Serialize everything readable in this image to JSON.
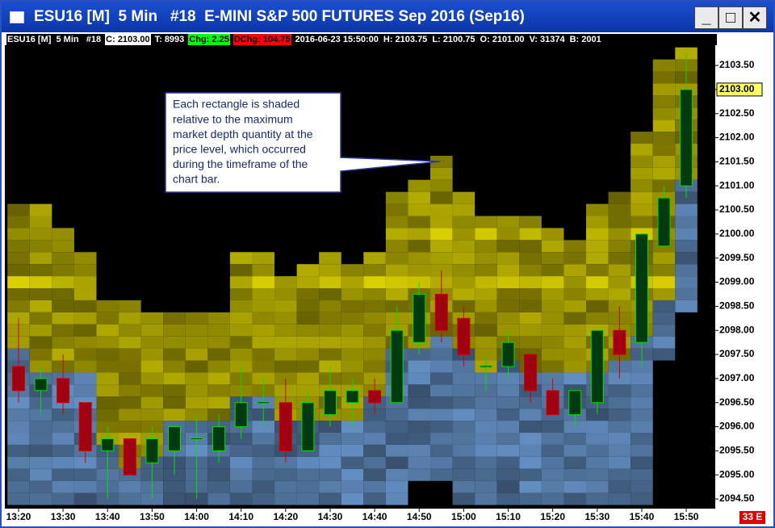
{
  "window_title": "ESU16 [M]  5 Min   #18  E-MINI S&P 500 FUTURES Sep 2016 (Sep16)",
  "info_bar": [
    {
      "text": "ESU16 [M]  5 Min   #18"
    },
    {
      "text": "C: 2103.00",
      "bg": "#ffffff",
      "fg": "#000000"
    },
    {
      "text": "T: 8993"
    },
    {
      "text": "Chg: 2.25",
      "bg": "#00ff00",
      "fg": "#000000"
    },
    {
      "text": "DChg: 104.75",
      "bg": "#ff0000",
      "fg": "#000000"
    },
    {
      "text": "2016-06-23 15:50:00"
    },
    {
      "text": "H: 2103.75"
    },
    {
      "text": "L: 2100.75"
    },
    {
      "text": "O: 2101.00"
    },
    {
      "text": "V: 31374"
    },
    {
      "text": "B: 2001"
    }
  ],
  "status": "33 E",
  "chart_data": {
    "type": "candlestick",
    "annotation": [
      "Each rectangle is shaded",
      "relative to the maximum",
      "market depth quantity at the",
      "price level, which occurred",
      "during the timeframe of the",
      "chart bar."
    ],
    "categories": [
      "13:20",
      null,
      "13:30",
      null,
      "13:40",
      null,
      "13:50",
      null,
      "14:00",
      null,
      "14:10",
      null,
      "14:20",
      null,
      "14:30",
      null,
      "14:40",
      null,
      "14:50",
      null,
      "15:00",
      null,
      "15:10",
      null,
      "15:20",
      null,
      "15:30",
      null,
      "15:40",
      null,
      "15:50"
    ],
    "open": [
      2097.25,
      2096.75,
      2097.0,
      2096.5,
      2095.5,
      2095.75,
      2095.25,
      2095.5,
      2095.75,
      2095.5,
      2096.0,
      2096.5,
      2096.5,
      2095.5,
      2096.25,
      2096.5,
      2096.75,
      2096.5,
      2097.75,
      2098.75,
      2098.25,
      2097.25,
      2097.25,
      2097.5,
      2096.75,
      2096.25,
      2096.5,
      2098.0,
      2097.75,
      2099.75,
      2101.0
    ],
    "high": [
      2098.25,
      2097.25,
      2097.5,
      2096.5,
      2096.0,
      2095.75,
      2096.0,
      2096.0,
      2096.25,
      2096.25,
      2097.25,
      2097.0,
      2097.0,
      2096.75,
      2097.25,
      2097.0,
      2097.0,
      2098.5,
      2099.0,
      2099.25,
      2098.5,
      2097.5,
      2098.0,
      2097.5,
      2097.0,
      2096.75,
      2098.0,
      2098.5,
      2100.0,
      2101.0,
      2103.75
    ],
    "low": [
      2096.5,
      2096.25,
      2096.25,
      2095.25,
      2094.5,
      2095.0,
      2094.5,
      2095.0,
      2094.5,
      2095.25,
      2095.75,
      2096.0,
      2095.25,
      2095.5,
      2096.0,
      2096.0,
      2096.25,
      2096.5,
      2097.5,
      2097.75,
      2097.25,
      2096.75,
      2097.0,
      2096.5,
      2096.25,
      2096.0,
      2096.25,
      2097.0,
      2097.25,
      2099.75,
      2100.75
    ],
    "close": [
      2096.75,
      2097.0,
      2096.5,
      2095.5,
      2095.75,
      2095.0,
      2095.75,
      2096.0,
      2095.75,
      2096.0,
      2096.5,
      2096.5,
      2095.5,
      2096.5,
      2096.75,
      2096.75,
      2096.5,
      2098.0,
      2098.75,
      2098.0,
      2097.5,
      2097.25,
      2097.75,
      2096.75,
      2096.25,
      2096.75,
      2098.0,
      2097.5,
      2100.0,
      2100.75,
      2103.0
    ],
    "up_color": "#00e000",
    "down_color": "#d00000",
    "depth": {
      "ask_high": [
        2100.5,
        2100.5,
        2100.0,
        2099.5,
        2098.5,
        2098.5,
        2098.25,
        2098.25,
        2098.25,
        2098.25,
        2099.5,
        2099.5,
        2099.0,
        2099.25,
        2099.5,
        2099.25,
        2099.5,
        2100.75,
        2101.0,
        2101.5,
        2100.75,
        2100.25,
        2100.25,
        2100.25,
        2100.0,
        2099.75,
        2100.5,
        2100.75,
        2102.0,
        2103.5,
        2103.75
      ],
      "bid_high": [
        2097.5,
        2097.0,
        2097.0,
        2097.0,
        2095.5,
        2095.0,
        2095.25,
        2096.0,
        2096.0,
        2096.0,
        2096.5,
        2096.5,
        2096.0,
        2096.0,
        2096.0,
        2096.0,
        2096.5,
        2097.5,
        2097.5,
        2097.75,
        2097.5,
        2097.0,
        2097.25,
        2097.0,
        2097.0,
        2097.0,
        2097.0,
        2097.25,
        2097.75,
        2098.5,
        2101.0
      ],
      "bid_low": [
        2094.5,
        2094.5,
        2094.5,
        2094.5,
        2094.5,
        2094.5,
        2094.5,
        2094.5,
        2094.5,
        2094.5,
        2094.5,
        2094.5,
        2094.5,
        2094.5,
        2094.5,
        2094.5,
        2094.5,
        2094.5,
        2095.0,
        2095.0,
        2094.5,
        2094.5,
        2094.5,
        2094.5,
        2094.5,
        2094.5,
        2094.5,
        2094.5,
        2094.5,
        2097.5,
        2098.5
      ],
      "ask_color": "#8a8400",
      "bid_color": "#4a6a90"
    },
    "last_price": {
      "value": 2103.0,
      "label": "2103.00"
    },
    "ylim": [
      2094.3,
      2103.92
    ],
    "yticks": [
      {
        "value": 2094.5,
        "label": "2094.50"
      },
      {
        "value": 2095.0,
        "label": "2095.00"
      },
      {
        "value": 2095.5,
        "label": "2095.50"
      },
      {
        "value": 2096.0,
        "label": "2096.00"
      },
      {
        "value": 2096.5,
        "label": "2096.50"
      },
      {
        "value": 2097.0,
        "label": "2097.00"
      },
      {
        "value": 2097.5,
        "label": "2097.50"
      },
      {
        "value": 2098.0,
        "label": "2098.00"
      },
      {
        "value": 2098.5,
        "label": "2098.50"
      },
      {
        "value": 2099.0,
        "label": "2099.00"
      },
      {
        "value": 2099.5,
        "label": "2099.50"
      },
      {
        "value": 2100.0,
        "label": "2100.00"
      },
      {
        "value": 2100.5,
        "label": "2100.50"
      },
      {
        "value": 2101.0,
        "label": "2101.00"
      },
      {
        "value": 2101.5,
        "label": "2101.50"
      },
      {
        "value": 2102.0,
        "label": "2102.00"
      },
      {
        "value": 2102.5,
        "label": "2102.50"
      },
      {
        "value": 2103.0,
        "label": "2103.00"
      },
      {
        "value": 2103.5,
        "label": "2103.50"
      }
    ]
  }
}
